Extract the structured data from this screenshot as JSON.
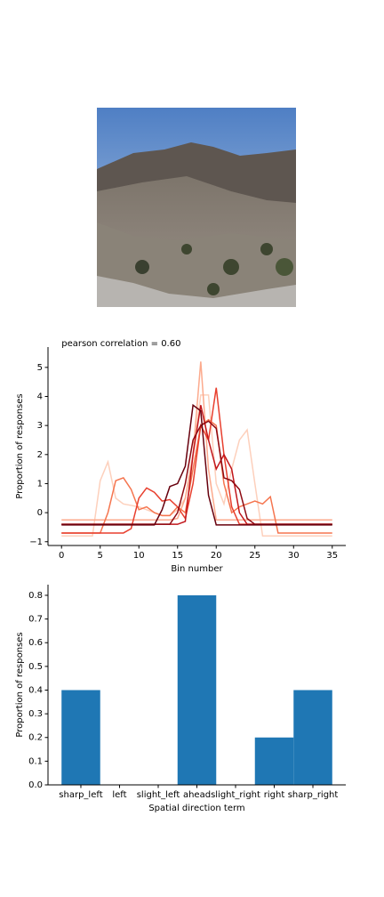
{
  "chart_data": [
    {
      "type": "line",
      "title": "pearson correlation = 0.60",
      "xlabel": "Bin number",
      "ylabel": "Proportion of responses",
      "x": [
        0,
        1,
        2,
        3,
        4,
        5,
        6,
        7,
        8,
        9,
        10,
        11,
        12,
        13,
        14,
        15,
        16,
        17,
        18,
        19,
        20,
        21,
        22,
        23,
        24,
        25,
        26,
        27,
        28,
        29,
        30,
        31,
        32,
        33,
        34,
        35
      ],
      "series": [
        {
          "color": "#fdd0bc",
          "values": [
            -0.8,
            -0.8,
            -0.8,
            -0.8,
            -0.8,
            1.1,
            1.75,
            0.5,
            0.3,
            0.25,
            0.2,
            0.1,
            0.0,
            -0.1,
            -0.1,
            0.1,
            0.5,
            2.0,
            4.05,
            4.05,
            1.0,
            0.3,
            1.5,
            2.5,
            2.85,
            1.0,
            -0.8,
            -0.8,
            -0.8,
            -0.8,
            -0.8,
            -0.8,
            -0.8,
            -0.8,
            -0.8,
            -0.8
          ]
        },
        {
          "color": "#fcaa8d",
          "values": [
            -0.25,
            -0.25,
            -0.25,
            -0.25,
            -0.25,
            -0.25,
            -0.25,
            -0.25,
            -0.25,
            -0.25,
            -0.25,
            -0.25,
            -0.25,
            -0.25,
            -0.25,
            -0.2,
            0.5,
            2.0,
            5.2,
            1.5,
            -0.25,
            -0.25,
            -0.25,
            -0.25,
            -0.25,
            -0.25,
            -0.25,
            -0.25,
            -0.25,
            -0.25,
            -0.25,
            -0.25,
            -0.25,
            -0.25,
            -0.25,
            -0.25
          ]
        },
        {
          "color": "#f5754f",
          "values": [
            -0.7,
            -0.7,
            -0.7,
            -0.7,
            -0.7,
            -0.7,
            0.0,
            1.1,
            1.2,
            0.8,
            0.1,
            0.2,
            0.0,
            -0.1,
            -0.1,
            0.2,
            0.0,
            1.5,
            3.0,
            3.2,
            3.0,
            1.0,
            0.0,
            0.2,
            0.3,
            0.4,
            0.3,
            0.55,
            -0.7,
            -0.7,
            -0.7,
            -0.7,
            -0.7,
            -0.7,
            -0.7,
            -0.7
          ]
        },
        {
          "color": "#e83f2e",
          "values": [
            -0.7,
            -0.7,
            -0.7,
            -0.7,
            -0.7,
            -0.7,
            -0.7,
            -0.7,
            -0.7,
            -0.55,
            0.5,
            0.85,
            0.7,
            0.4,
            0.45,
            0.2,
            -0.2,
            1.0,
            3.0,
            2.5,
            4.3,
            2.0,
            0.2,
            -0.4,
            -0.4,
            -0.4,
            -0.4,
            -0.4,
            -0.4,
            -0.4,
            -0.4,
            -0.4,
            -0.4,
            -0.4,
            -0.4,
            -0.4
          ]
        },
        {
          "color": "#c1161b",
          "values": [
            -0.4,
            -0.4,
            -0.4,
            -0.4,
            -0.4,
            -0.4,
            -0.4,
            -0.4,
            -0.4,
            -0.4,
            -0.4,
            -0.4,
            -0.4,
            -0.4,
            -0.4,
            -0.4,
            -0.3,
            2.0,
            3.7,
            2.5,
            1.5,
            2.0,
            1.5,
            0.0,
            -0.4,
            -0.4,
            -0.4,
            -0.4,
            -0.4,
            -0.4,
            -0.4,
            -0.4,
            -0.4,
            -0.4,
            -0.4,
            -0.4
          ]
        },
        {
          "color": "#8e0a12",
          "values": [
            -0.4,
            -0.4,
            -0.4,
            -0.4,
            -0.4,
            -0.4,
            -0.4,
            -0.4,
            -0.4,
            -0.4,
            -0.4,
            -0.4,
            -0.4,
            -0.4,
            -0.4,
            0.0,
            1.0,
            2.5,
            3.0,
            3.15,
            2.9,
            1.2,
            1.1,
            0.8,
            -0.2,
            -0.4,
            -0.4,
            -0.4,
            -0.4,
            -0.4,
            -0.4,
            -0.4,
            -0.4,
            -0.4,
            -0.4,
            -0.4
          ]
        },
        {
          "color": "#67000d",
          "values": [
            -0.42,
            -0.42,
            -0.42,
            -0.42,
            -0.42,
            -0.42,
            -0.42,
            -0.42,
            -0.42,
            -0.42,
            -0.42,
            -0.42,
            -0.42,
            0.1,
            0.9,
            1.0,
            1.6,
            3.7,
            3.5,
            0.6,
            -0.42,
            -0.42,
            -0.42,
            -0.42,
            -0.42,
            -0.42,
            -0.42,
            -0.42,
            -0.42,
            -0.42,
            -0.42,
            -0.42,
            -0.42,
            -0.42,
            -0.42,
            -0.42
          ]
        }
      ],
      "xlim": [
        -1.75,
        36.75
      ],
      "xticks": [
        0,
        5,
        10,
        15,
        20,
        25,
        30,
        35
      ],
      "ylim": [
        -1.13,
        5.7
      ],
      "yticks": [
        {
          "value": -1,
          "label": "−1"
        },
        0,
        1,
        2,
        3,
        4,
        5
      ]
    },
    {
      "type": "bar",
      "xlabel": "Spatial direction term",
      "ylabel": "Proportion of responses",
      "categories": [
        "sharp_left",
        "left",
        "slight_left",
        "ahead",
        "slight_right",
        "right",
        "sharp_right"
      ],
      "values": [
        0.4,
        0,
        0,
        0.8,
        0,
        0.2,
        0.4
      ],
      "color": "#1f77b4",
      "ylim": [
        0,
        0.845
      ],
      "yticks": [
        {
          "value": 0,
          "label": "0.0"
        },
        0.1,
        0.2,
        0.3,
        0.4,
        0.5,
        0.6,
        0.7,
        0.8
      ]
    }
  ]
}
